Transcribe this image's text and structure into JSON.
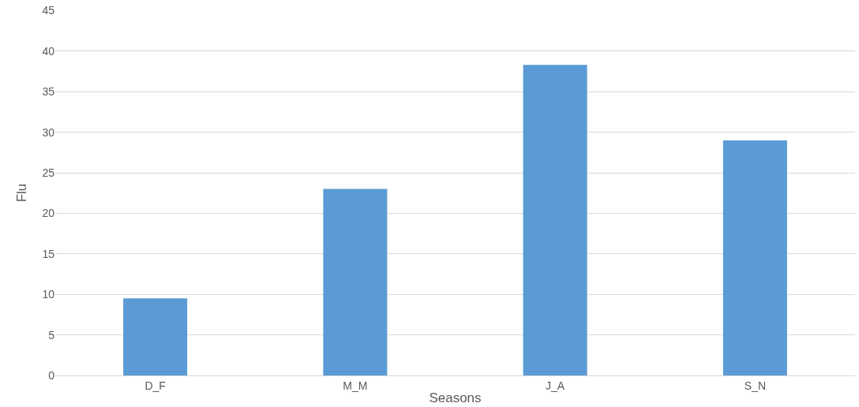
{
  "chart_data": {
    "type": "bar",
    "xlabel": "Seasons",
    "ylabel": "Flu",
    "categories": [
      "D_F",
      "M_M",
      "J_A",
      "S_N"
    ],
    "values": [
      9.5,
      23,
      38.3,
      29
    ],
    "color": "#5b9bd5",
    "ylim": [
      0,
      45
    ],
    "yticks": [
      0,
      5,
      10,
      15,
      20,
      25,
      30,
      35,
      40,
      45
    ],
    "grid": "y"
  }
}
